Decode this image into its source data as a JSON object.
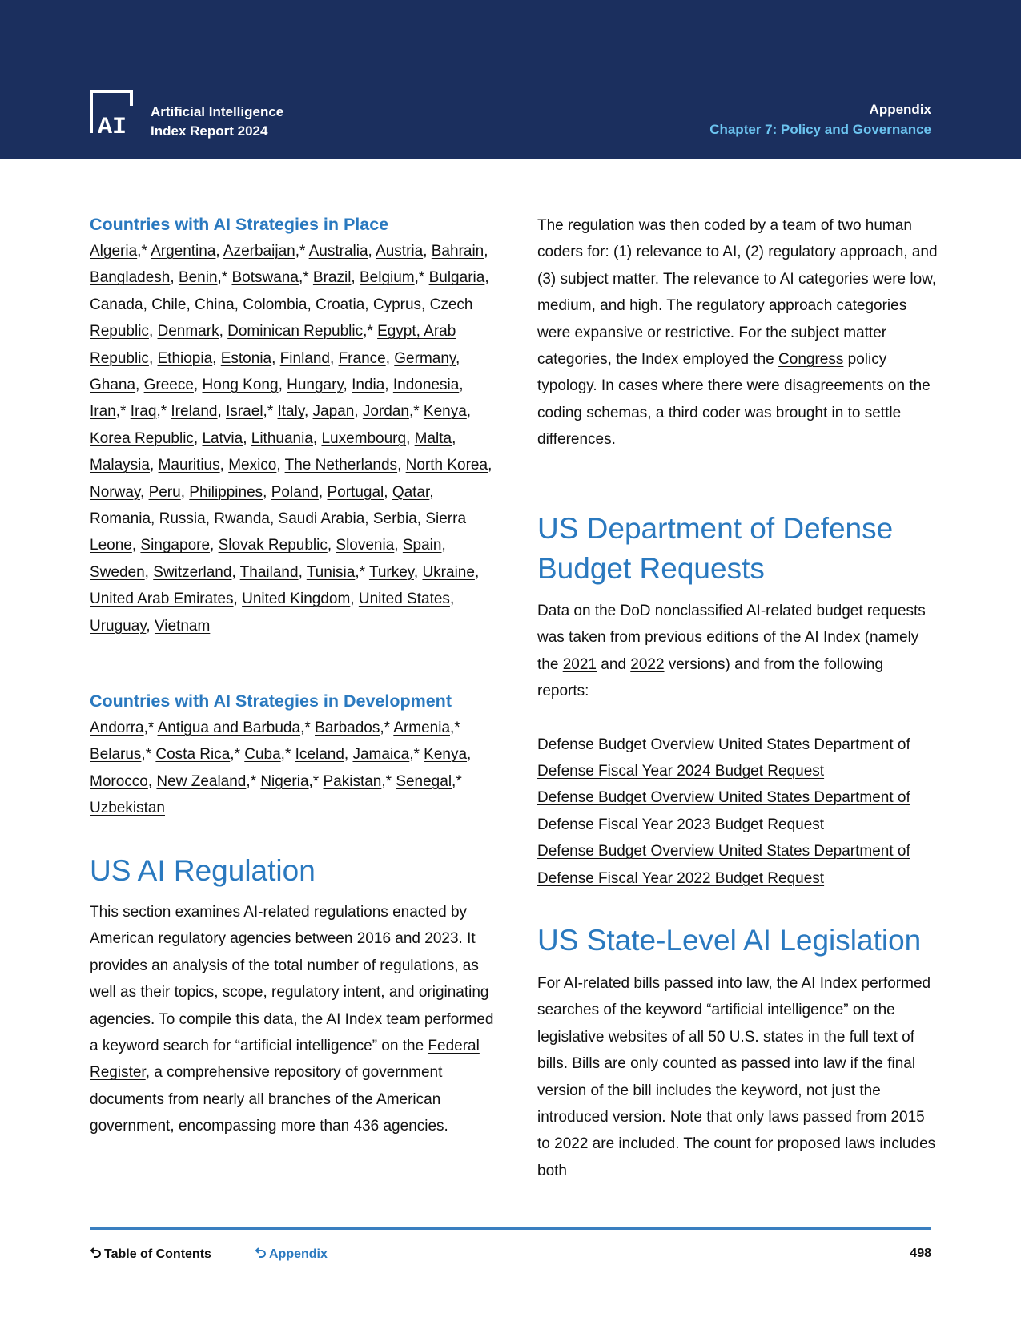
{
  "header": {
    "brand_line1": "Artificial Intelligence",
    "brand_line2": "Index Report 2024",
    "section": "Appendix",
    "chapter": "Chapter 7: Policy and Governance",
    "logo_text": "AI"
  },
  "left": {
    "in_place_title": "Countries with AI Strategies in Place",
    "in_place": [
      {
        "n": "Algeria",
        "s": true
      },
      {
        "n": "Argentina"
      },
      {
        "n": "Azerbaijan",
        "s": true
      },
      {
        "n": "Australia"
      },
      {
        "n": "Austria"
      },
      {
        "n": "Bahrain"
      },
      {
        "n": "Bangladesh"
      },
      {
        "n": "Benin",
        "s": true
      },
      {
        "n": "Botswana",
        "s": true
      },
      {
        "n": "Brazil"
      },
      {
        "n": "Belgium",
        "s": true
      },
      {
        "n": "Bulgaria"
      },
      {
        "n": "Canada"
      },
      {
        "n": "Chile"
      },
      {
        "n": "China"
      },
      {
        "n": "Colombia"
      },
      {
        "n": "Croatia"
      },
      {
        "n": "Cyprus"
      },
      {
        "n": "Czech Republic"
      },
      {
        "n": "Denmark"
      },
      {
        "n": "Dominican Republic",
        "s": true
      },
      {
        "n": "Egypt, Arab Republic"
      },
      {
        "n": "Ethiopia"
      },
      {
        "n": "Estonia"
      },
      {
        "n": "Finland"
      },
      {
        "n": "France"
      },
      {
        "n": "Germany"
      },
      {
        "n": "Ghana"
      },
      {
        "n": "Greece"
      },
      {
        "n": "Hong Kong"
      },
      {
        "n": "Hungary"
      },
      {
        "n": "India"
      },
      {
        "n": "Indonesia"
      },
      {
        "n": "Iran",
        "s": true
      },
      {
        "n": "Iraq",
        "s": true
      },
      {
        "n": "Ireland"
      },
      {
        "n": "Israel",
        "s": true
      },
      {
        "n": "Italy"
      },
      {
        "n": "Japan"
      },
      {
        "n": "Jordan",
        "s": true
      },
      {
        "n": "Kenya"
      },
      {
        "n": "Korea Republic"
      },
      {
        "n": "Latvia"
      },
      {
        "n": "Lithuania"
      },
      {
        "n": "Luxembourg"
      },
      {
        "n": "Malta"
      },
      {
        "n": "Malaysia"
      },
      {
        "n": "Mauritius"
      },
      {
        "n": "Mexico"
      },
      {
        "n": "The Netherlands"
      },
      {
        "n": "North Korea"
      },
      {
        "n": "Norway"
      },
      {
        "n": "Peru"
      },
      {
        "n": "Philippines"
      },
      {
        "n": "Poland"
      },
      {
        "n": "Portugal"
      },
      {
        "n": "Qatar"
      },
      {
        "n": "Romania"
      },
      {
        "n": "Russia"
      },
      {
        "n": "Rwanda"
      },
      {
        "n": "Saudi Arabia"
      },
      {
        "n": "Serbia"
      },
      {
        "n": "Sierra Leone"
      },
      {
        "n": "Singapore"
      },
      {
        "n": "Slovak Republic"
      },
      {
        "n": "Slovenia"
      },
      {
        "n": "Spain"
      },
      {
        "n": "Sweden"
      },
      {
        "n": "Switzerland"
      },
      {
        "n": "Thailand"
      },
      {
        "n": "Tunisia",
        "s": true
      },
      {
        "n": "Turkey"
      },
      {
        "n": "Ukraine"
      },
      {
        "n": "United Arab Emirates"
      },
      {
        "n": "United Kingdom"
      },
      {
        "n": "United States"
      },
      {
        "n": "Uruguay"
      },
      {
        "n": "Vietnam"
      }
    ],
    "in_dev_title": "Countries with AI Strategies in Development",
    "in_dev": [
      {
        "n": "Andorra",
        "s": true
      },
      {
        "n": "Antigua and Barbuda",
        "s": true
      },
      {
        "n": "Barbados",
        "s": true
      },
      {
        "n": "Armenia",
        "s": true
      },
      {
        "n": "Belarus",
        "s": true
      },
      {
        "n": "Costa Rica",
        "s": true
      },
      {
        "n": "Cuba",
        "s": true
      },
      {
        "n": "Iceland"
      },
      {
        "n": "Jamaica",
        "s": true
      },
      {
        "n": "Kenya"
      },
      {
        "n": "Morocco"
      },
      {
        "n": "New Zealand",
        "s": true
      },
      {
        "n": "Nigeria",
        "s": true
      },
      {
        "n": "Pakistan",
        "s": true
      },
      {
        "n": "Senegal",
        "s": true
      },
      {
        "n": "Uzbekistan"
      }
    ],
    "reg_title": "US AI Regulation",
    "reg_para": [
      {
        "t": "This section examines AI-related regulations enacted by American regulatory agencies between 2016 and 2023. It provides an analysis of the total number of regulations, as well as their topics, scope, regulatory intent, and originating agencies. To compile this data, the AI Index team performed a keyword search for “artificial intelligence” on the "
      },
      {
        "t": "Federal Register",
        "link": true
      },
      {
        "t": ", a comprehensive repository of government documents from nearly all branches of the American government, encompassing more than 436 agencies."
      }
    ]
  },
  "right": {
    "coding_para": [
      {
        "t": "The regulation was then coded by a team of two human coders for: (1) relevance to AI, (2) regulatory approach, and (3) subject matter. The relevance to AI categories were low, medium, and high. The regulatory approach categories were expansive or restrictive. For the subject matter categories, the Index employed the "
      },
      {
        "t": "Congress",
        "link": true
      },
      {
        "t": " policy typology. In cases where there were disagreements on the coding schemas, a third coder was brought in to settle differences."
      }
    ],
    "dod_title": "US Department of Defense Budget Requests",
    "dod_para": [
      {
        "t": "Data on the DoD nonclassified AI-related budget requests was taken from previous editions of the AI Index (namely the "
      },
      {
        "t": "2021",
        "link": true
      },
      {
        "t": " and "
      },
      {
        "t": "2022",
        "link": true
      },
      {
        "t": " versions) and from the following reports:"
      }
    ],
    "dod_links": [
      "Defense Budget Overview United States Department of Defense Fiscal Year 2024 Budget Request",
      "Defense Budget Overview United States Department of Defense Fiscal Year 2023 Budget Request",
      "Defense Budget Overview United States Department of Defense Fiscal Year 2022 Budget Request"
    ],
    "state_title": "US State-Level AI Legislation",
    "state_para": [
      {
        "t": "For AI-related bills passed into law, the AI Index performed searches of the keyword “artificial intelligence” on the legislative websites of all 50 U.S. states in the full text of bills. Bills are only counted as passed into law if the final version of the bill includes the keyword, not just the introduced version. Note that only laws passed from 2015 to 2022 are included. The count for proposed laws includes both"
      }
    ]
  },
  "footer": {
    "toc": "Table of Contents",
    "appendix": "Appendix",
    "page": "498"
  },
  "colors": {
    "navy": "#1b2f5e",
    "blue": "#2a79bf",
    "light_blue": "#6cc4f0"
  }
}
